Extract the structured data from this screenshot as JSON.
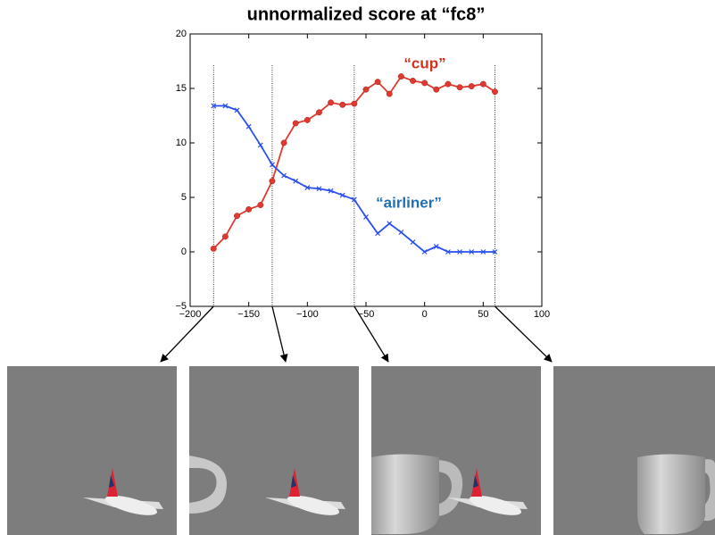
{
  "chart_data": {
    "type": "line",
    "title": "unnormalized score at “fc8”",
    "x": [
      -180,
      -170,
      -160,
      -150,
      -140,
      -130,
      -120,
      -110,
      -100,
      -90,
      -80,
      -70,
      -60,
      -50,
      -40,
      -30,
      -20,
      -10,
      0,
      10,
      20,
      30,
      40,
      50,
      60
    ],
    "series": [
      {
        "name": "“cup”",
        "color": "#e03a30",
        "marker": "circle",
        "label_color": "#d0321e",
        "values": [
          0.3,
          1.4,
          3.3,
          3.9,
          4.3,
          6.5,
          10.0,
          11.8,
          12.1,
          12.8,
          13.7,
          13.5,
          13.6,
          14.9,
          15.6,
          14.5,
          16.1,
          15.7,
          15.5,
          14.9,
          15.4,
          15.1,
          15.2,
          15.4,
          14.7
        ]
      },
      {
        "name": "“airliner”",
        "color": "#2a4ff0",
        "marker": "x",
        "label_color": "#1f6fb5",
        "values": [
          13.4,
          13.4,
          13.0,
          11.5,
          9.8,
          8.0,
          7.0,
          6.5,
          5.9,
          5.8,
          5.6,
          5.2,
          4.8,
          3.2,
          1.7,
          2.6,
          1.8,
          0.9,
          0.0,
          0.5,
          0.0,
          0.0,
          0.0,
          0.0,
          0.0
        ]
      }
    ],
    "vlines": [
      -180,
      -130,
      -60,
      60
    ],
    "xlim": [
      -200,
      100
    ],
    "xticks": [
      {
        "value": -200,
        "label": "−200"
      },
      {
        "value": -150,
        "label": "−150"
      },
      {
        "value": -100,
        "label": "−100"
      },
      {
        "value": -50,
        "label": "−50"
      },
      0,
      50,
      100
    ],
    "ylim": [
      -5,
      20
    ],
    "yticks": [
      {
        "value": -5,
        "label": "−5"
      },
      0,
      5,
      10,
      15,
      20
    ],
    "grid": false
  }
}
